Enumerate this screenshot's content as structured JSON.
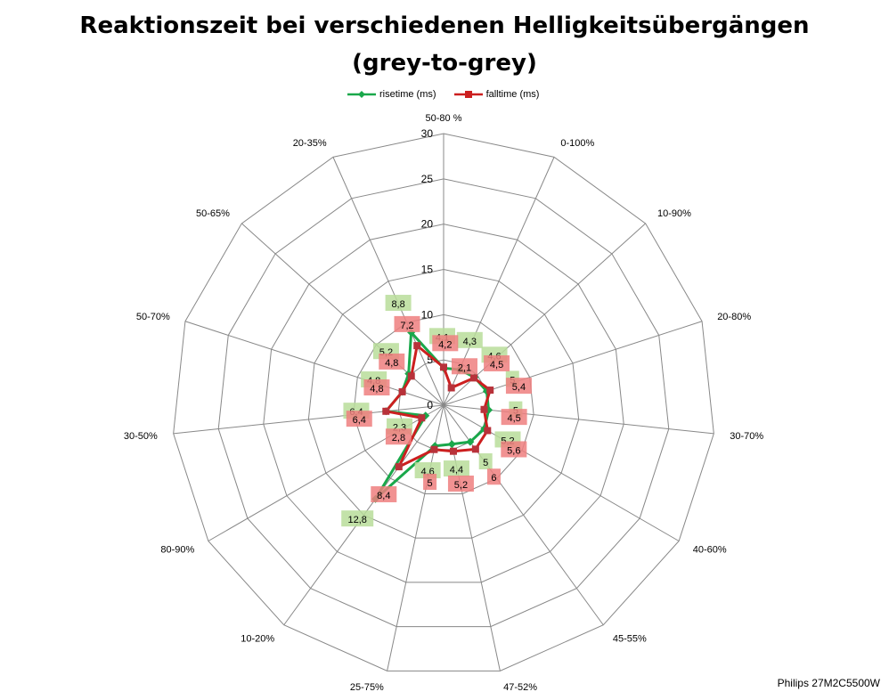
{
  "title_line1": "Reaktionszeit bei verschiedenen Helligkeitsübergängen",
  "title_line2": "(grey-to-grey)",
  "footer": "Philips 27M2C5500W",
  "colors": {
    "rise": "#1aa84b",
    "fall": "#cc1f1f",
    "rise_label_bg": "#b9dd9a",
    "fall_label_bg": "#ef7f7f",
    "grid": "#888888"
  },
  "chart_data": {
    "type": "radar",
    "title": "Reaktionszeit bei verschiedenen Helligkeitsübergängen (grey-to-grey)",
    "categories": [
      "50-80 %",
      "0-100%",
      "10-90%",
      "20-80%",
      "30-70%",
      "40-60%",
      "45-55%",
      "47-52%",
      "25-75%",
      "10-20%",
      "80-90%",
      "30-50%",
      "50-70%",
      "50-65%",
      "20-35%"
    ],
    "rmax": 30,
    "ticks": [
      "0",
      "5",
      "10",
      "15",
      "20",
      "25",
      "30"
    ],
    "series": [
      {
        "name": "risetime (ms)",
        "values": [
          4.1,
          4.3,
          4.6,
          5,
          5,
          5.2,
          5,
          4.4,
          4.6,
          12.8,
          2.3,
          6.4,
          4.8,
          5.2,
          8.8
        ]
      },
      {
        "name": "falltime (ms)",
        "values": [
          4.2,
          2.1,
          4.5,
          5.4,
          4.5,
          5.6,
          6,
          5.2,
          5,
          8.4,
          2.8,
          6.4,
          4.8,
          4.8,
          7.2
        ]
      }
    ],
    "legend": "top",
    "grid": true
  }
}
